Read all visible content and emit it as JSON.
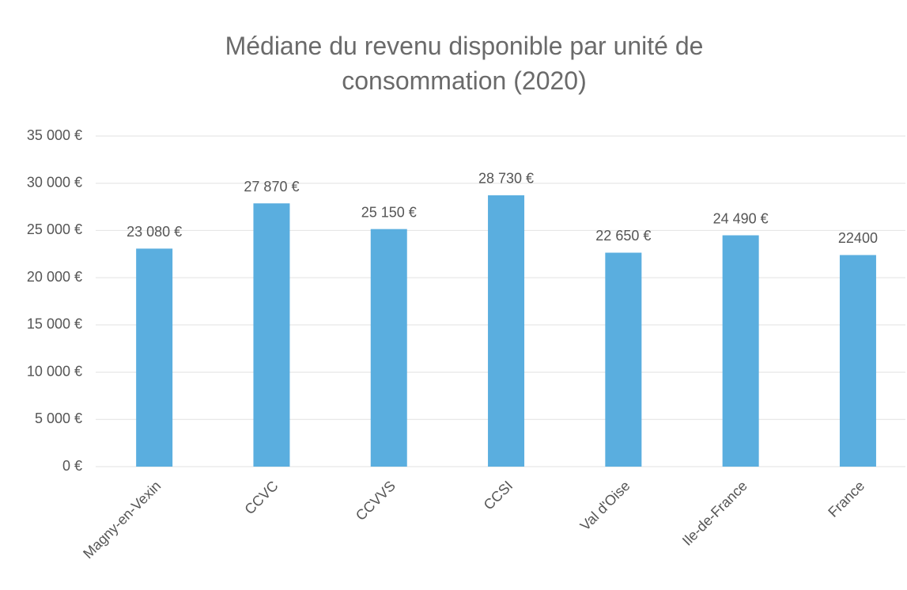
{
  "chart_data": {
    "type": "bar",
    "title": "Médiane du revenu disponible par unité de consommation (2020)",
    "categories": [
      "Magny-en-Vexin",
      "CCVC",
      "CCVVS",
      "CCSI",
      "Val d'Oise",
      "Ile-de-France",
      "France"
    ],
    "values": [
      23080,
      27870,
      25150,
      28730,
      22650,
      24490,
      22400
    ],
    "value_labels": [
      "23 080 €",
      "27 870 €",
      "25 150 €",
      "28 730 €",
      "22 650 €",
      "24 490 €",
      "22400"
    ],
    "color": "#5aaedf",
    "ylim": [
      0,
      35000
    ],
    "yticks": [
      {
        "value": 0,
        "label": "0 €"
      },
      {
        "value": 5000,
        "label": "5 000 €"
      },
      {
        "value": 10000,
        "label": "10 000 €"
      },
      {
        "value": 15000,
        "label": "15 000 €"
      },
      {
        "value": 20000,
        "label": "20 000 €"
      },
      {
        "value": 25000,
        "label": "25 000 €"
      },
      {
        "value": 30000,
        "label": "30 000 €"
      },
      {
        "value": 35000,
        "label": "35 000 €"
      }
    ],
    "grid": true
  }
}
